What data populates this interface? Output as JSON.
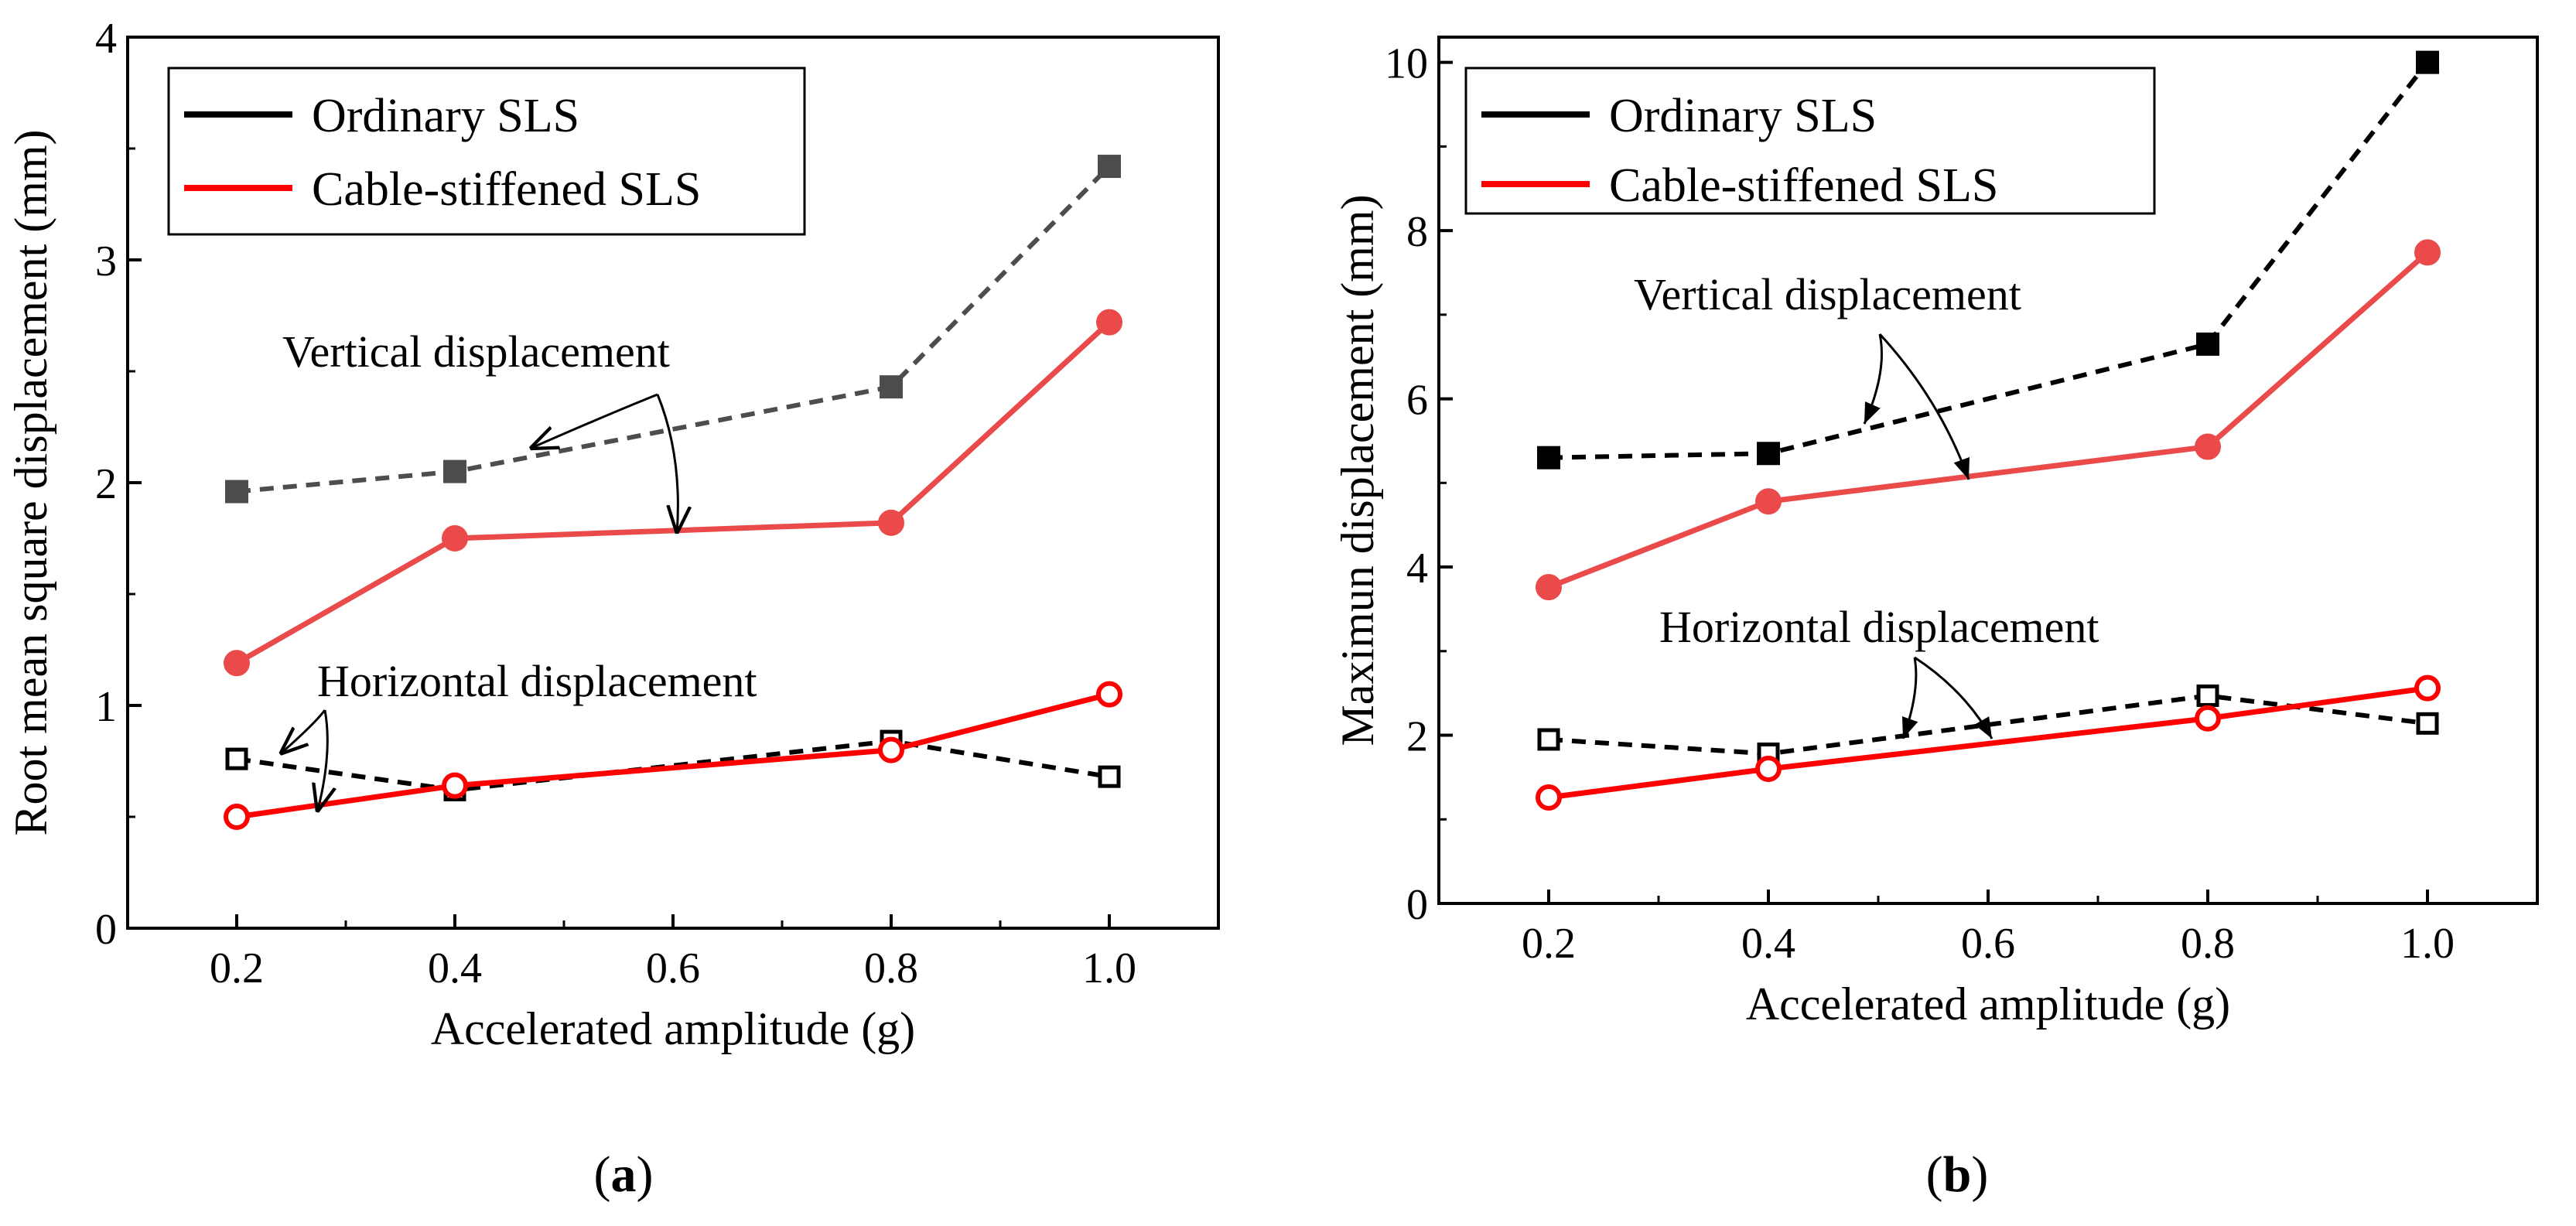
{
  "colors": {
    "ordinary_rms": "#4d4d4d",
    "ordinary_max": "#000000",
    "ordinary_horizontal": "#000000",
    "cable_vertical": "#ea4a4a",
    "cable_horizontal": "#ff0000",
    "axis": "#000000"
  },
  "chart_data": [
    {
      "type": "line",
      "panel_label_open": "(",
      "panel_label_letter": "a",
      "panel_label_close": ")",
      "xlabel": "Accelerated amplitude (g)",
      "ylabel": "Root mean square displacement (mm)",
      "xlim": [
        0.1,
        1.1
      ],
      "ylim": [
        0,
        4
      ],
      "xticks": [
        0.2,
        0.4,
        0.6,
        0.8,
        1.0
      ],
      "xtick_labels": [
        "0.2",
        "0.4",
        "0.6",
        "0.8",
        "1.0"
      ],
      "yticks": [
        0,
        1,
        2,
        3,
        4
      ],
      "ytick_labels": [
        "0",
        "1",
        "2",
        "3",
        "4"
      ],
      "legend": [
        "Ordinary SLS",
        "Cable-stiffened SLS"
      ],
      "legend_position": "top-left",
      "annotations": [
        "Vertical displacement",
        "Horizontal displacement"
      ],
      "series": [
        {
          "name": "Ordinary SLS - vertical",
          "x": [
            0.2,
            0.4,
            0.8,
            1.0
          ],
          "values": [
            1.96,
            2.05,
            2.43,
            3.42
          ],
          "style": "dashed",
          "marker": "filled-square"
        },
        {
          "name": "Cable-stiffened SLS - vertical",
          "x": [
            0.2,
            0.4,
            0.8,
            1.0
          ],
          "values": [
            1.19,
            1.75,
            1.82,
            2.72
          ],
          "style": "solid",
          "marker": "filled-circle"
        },
        {
          "name": "Ordinary SLS - horizontal",
          "x": [
            0.2,
            0.4,
            0.8,
            1.0
          ],
          "values": [
            0.76,
            0.62,
            0.84,
            0.68
          ],
          "style": "dashed",
          "marker": "open-square"
        },
        {
          "name": "Cable-stiffened SLS - horizontal",
          "x": [
            0.2,
            0.4,
            0.8,
            1.0
          ],
          "values": [
            0.5,
            0.64,
            0.8,
            1.05
          ],
          "style": "solid",
          "marker": "open-circle"
        }
      ]
    },
    {
      "type": "line",
      "panel_label_open": "(",
      "panel_label_letter": "b",
      "panel_label_close": ")",
      "xlabel": "Accelerated amplitude (g)",
      "ylabel": "Maximun displacement (mm)",
      "xlim": [
        0.1,
        1.1
      ],
      "ylim": [
        0,
        10.3
      ],
      "xticks": [
        0.2,
        0.4,
        0.6,
        0.8,
        1.0
      ],
      "xtick_labels": [
        "0.2",
        "0.4",
        "0.6",
        "0.8",
        "1.0"
      ],
      "yticks": [
        0,
        2,
        4,
        6,
        8,
        10
      ],
      "ytick_labels": [
        "0",
        "2",
        "4",
        "6",
        "8",
        "10"
      ],
      "legend": [
        "Ordinary SLS",
        "Cable-stiffened SLS"
      ],
      "legend_position": "top-left",
      "annotations": [
        "Vertical displacement",
        "Horizontal displacement"
      ],
      "series": [
        {
          "name": "Ordinary SLS - vertical",
          "x": [
            0.2,
            0.4,
            0.8,
            1.0
          ],
          "values": [
            5.3,
            5.35,
            6.65,
            10.0
          ],
          "style": "dashed",
          "marker": "filled-square"
        },
        {
          "name": "Cable-stiffened SLS - vertical",
          "x": [
            0.2,
            0.4,
            0.8,
            1.0
          ],
          "values": [
            3.76,
            4.78,
            5.43,
            7.74
          ],
          "style": "solid",
          "marker": "filled-circle"
        },
        {
          "name": "Ordinary SLS - horizontal",
          "x": [
            0.2,
            0.4,
            0.8,
            1.0
          ],
          "values": [
            1.95,
            1.78,
            2.47,
            2.14
          ],
          "style": "dashed",
          "marker": "open-square"
        },
        {
          "name": "Cable-stiffened SLS - horizontal",
          "x": [
            0.2,
            0.4,
            0.8,
            1.0
          ],
          "values": [
            1.26,
            1.6,
            2.2,
            2.56
          ],
          "style": "solid",
          "marker": "open-circle"
        }
      ]
    }
  ]
}
